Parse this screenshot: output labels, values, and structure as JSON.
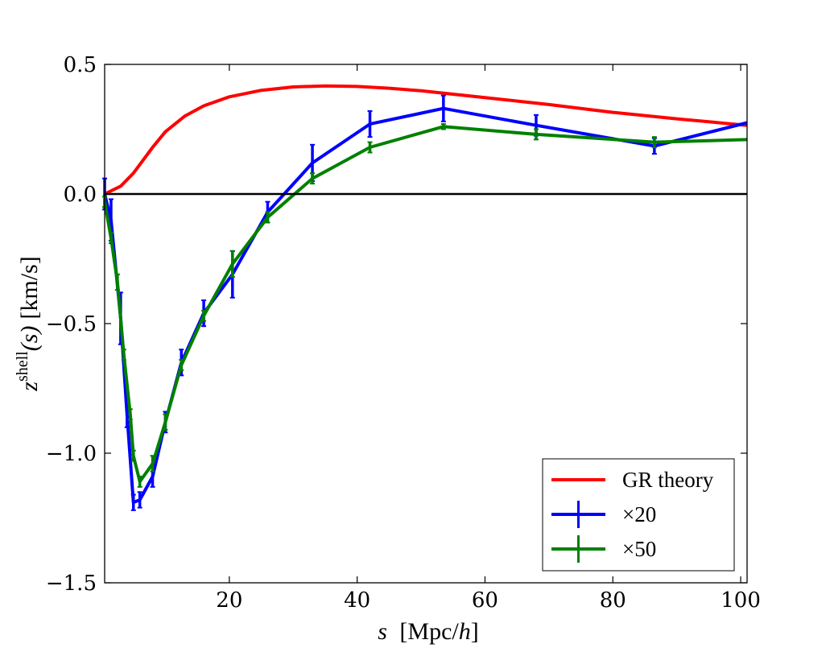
{
  "chart_data": {
    "type": "line",
    "title": "",
    "xlabel_var": "s",
    "xlabel_unit": "[Mpc/",
    "xlabel_unit_var": "h",
    "xlabel_unit_close": "]",
    "ylabel_var": "z",
    "ylabel_sup": "shell",
    "ylabel_args": "(s)",
    "ylabel_unit": "[km/s]",
    "xlim": [
      0.5,
      101
    ],
    "ylim": [
      -1.5,
      0.5
    ],
    "x_ticks": [
      20,
      40,
      60,
      80,
      100
    ],
    "x_tick_labels": [
      "20",
      "40",
      "60",
      "80",
      "100"
    ],
    "y_ticks": [
      0.5,
      0.0,
      -0.5,
      -1.0,
      -1.5
    ],
    "y_tick_labels": [
      "0.5",
      "0.0",
      "−0.5",
      "−1.0",
      "−1.5"
    ],
    "reference_line": {
      "y": 0.0,
      "color": "#000000"
    },
    "series": [
      {
        "name": "GR theory",
        "color": "#ff0000",
        "errorbars": false,
        "x": [
          0.5,
          3,
          5,
          8,
          10,
          13,
          16,
          20,
          25,
          30,
          35,
          40,
          45,
          50,
          55,
          60,
          70,
          80,
          90,
          101
        ],
        "y": [
          0.0,
          0.03,
          0.08,
          0.18,
          0.24,
          0.3,
          0.34,
          0.375,
          0.4,
          0.413,
          0.417,
          0.415,
          0.408,
          0.398,
          0.385,
          0.372,
          0.345,
          0.315,
          0.29,
          0.265
        ]
      },
      {
        "name": "×20",
        "color": "#0000ff",
        "errorbars": true,
        "x": [
          0.5,
          1.5,
          3,
          4,
          5,
          6,
          8,
          10,
          12.5,
          16,
          20.5,
          26,
          33,
          42,
          53.5,
          68,
          86.5,
          101
        ],
        "y": [
          0.0,
          -0.1,
          -0.48,
          -0.85,
          -1.19,
          -1.18,
          -1.09,
          -0.88,
          -0.65,
          -0.46,
          -0.31,
          -0.07,
          0.12,
          0.27,
          0.33,
          0.265,
          0.185,
          0.275
        ],
        "err": [
          0.06,
          0.08,
          0.1,
          0.05,
          0.03,
          0.03,
          0.04,
          0.04,
          0.05,
          0.05,
          0.09,
          0.04,
          0.07,
          0.05,
          0.05,
          0.04,
          0.03,
          0.0
        ]
      },
      {
        "name": "×50",
        "color": "#008000",
        "errorbars": true,
        "x": [
          0.5,
          1.5,
          2.5,
          3.5,
          4.5,
          5,
          6,
          8,
          10,
          12.5,
          16,
          20.5,
          26,
          33,
          42,
          53.5,
          68,
          86.5,
          101
        ],
        "y": [
          -0.03,
          -0.17,
          -0.34,
          -0.62,
          -0.85,
          -1.01,
          -1.11,
          -1.04,
          -0.88,
          -0.66,
          -0.47,
          -0.27,
          -0.09,
          0.06,
          0.18,
          0.26,
          0.23,
          0.2,
          0.21
        ],
        "err": [
          0.02,
          0.02,
          0.03,
          0.02,
          0.02,
          0.02,
          0.02,
          0.03,
          0.03,
          0.02,
          0.02,
          0.05,
          0.02,
          0.02,
          0.02,
          0.01,
          0.02,
          0.02,
          0.0
        ]
      }
    ],
    "legend": {
      "position": "lower-right",
      "entries": [
        "GR theory",
        "×20",
        "×50"
      ]
    }
  }
}
